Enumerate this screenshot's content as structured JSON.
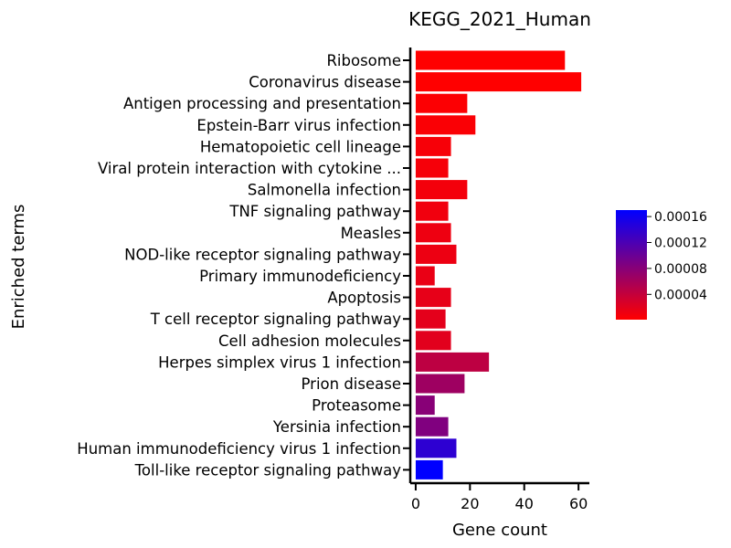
{
  "chart_data": {
    "type": "bar",
    "orientation": "horizontal",
    "title": "KEGG_2021_Human",
    "xlabel": "Gene count",
    "ylabel": "Enriched terms",
    "xlim": [
      -2,
      64
    ],
    "xticks": [
      0,
      20,
      40,
      60
    ],
    "categories": [
      "Ribosome",
      "Coronavirus disease",
      "Antigen processing and presentation",
      "Epstein-Barr virus infection",
      "Hematopoietic cell lineage",
      "Viral protein interaction with cytokine ...",
      "Salmonella infection",
      "TNF signaling pathway",
      "Measles",
      "NOD-like receptor signaling pathway",
      "Primary immunodeficiency",
      "Apoptosis",
      "T cell receptor signaling pathway",
      "Cell adhesion molecules",
      "Herpes simplex virus 1 infection",
      "Prion disease",
      "Proteasome",
      "Yersinia infection",
      "Human immunodeficiency virus 1 infection",
      "Toll-like receptor signaling pathway"
    ],
    "values": [
      55,
      61,
      19,
      22,
      13,
      12,
      19,
      12,
      13,
      15,
      7,
      13,
      11,
      13,
      27,
      18,
      7,
      12,
      15,
      10
    ],
    "color_values": [
      1e-06,
      1e-06,
      3e-06,
      4e-06,
      6e-06,
      7e-06,
      8e-06,
      1e-05,
      1.2e-05,
      1.3e-05,
      1.5e-05,
      1.7e-05,
      1.9e-05,
      2e-05,
      4.5e-05,
      6.5e-05,
      8e-05,
      8.5e-05,
      0.00014,
      0.00017
    ],
    "colorbar": {
      "min": 1e-06,
      "max": 0.00017,
      "ticks": [
        4e-05,
        8e-05,
        0.00012,
        0.00016
      ],
      "tick_labels": [
        "0.00004",
        "0.00008",
        "0.00012",
        "0.00016"
      ],
      "color_low": "#ff0000",
      "color_high": "#0000ff"
    },
    "grid": false,
    "legend": "right"
  }
}
